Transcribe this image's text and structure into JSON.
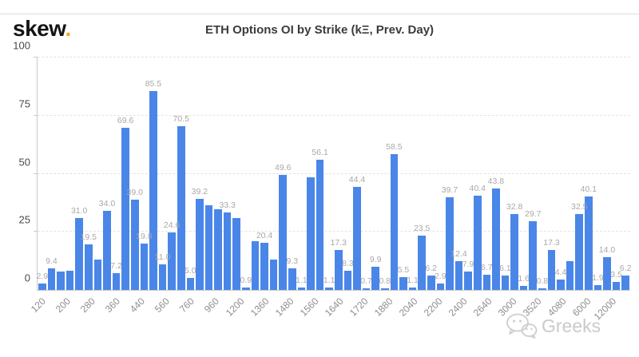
{
  "brand": {
    "logo_text": "skew",
    "logo_dot": "."
  },
  "title": "ETH Options OI by Strike (kΞ, Prev. Day)",
  "watermark": {
    "text": "Greeks",
    "icon": "wechat-icon"
  },
  "colors": {
    "bar": "#4a86e8",
    "logo_dot_accent": "#f5a623",
    "grid": "#e4e4e4",
    "axis": "#c8c8c8",
    "value_label": "#a8a8a8",
    "x_label": "#8e8e8e",
    "y_label": "#4a4a4a"
  },
  "chart_data": {
    "type": "bar",
    "title": "ETH Options OI by Strike (kΞ, Prev. Day)",
    "xlabel": "",
    "ylabel": "",
    "ylim": [
      0,
      100
    ],
    "y_ticks": [
      0,
      25,
      50,
      75,
      100
    ],
    "grid": "horizontal-dashed",
    "legend": "none",
    "bar_color": "#4a86e8",
    "x_tick_labels": [
      "120",
      "200",
      "280",
      "360",
      "440",
      "560",
      "760",
      "960",
      "1200",
      "1360",
      "1480",
      "1560",
      "1640",
      "1720",
      "1880",
      "2040",
      "2200",
      "2400",
      "2640",
      "3000",
      "3520",
      "4080",
      "6000",
      "12000"
    ],
    "bars": [
      {
        "value": 2.9,
        "label": "2.9"
      },
      {
        "value": 9.4,
        "label": "9.4"
      },
      {
        "value": 7.8,
        "label": ""
      },
      {
        "value": 8.4,
        "label": ""
      },
      {
        "value": 31.0,
        "label": "31.0"
      },
      {
        "value": 19.5,
        "label": "19.5"
      },
      {
        "value": 13.2,
        "label": ""
      },
      {
        "value": 34.0,
        "label": "34.0"
      },
      {
        "value": 7.2,
        "label": "7.2"
      },
      {
        "value": 69.6,
        "label": "69.6"
      },
      {
        "value": 39.0,
        "label": "39.0"
      },
      {
        "value": 19.8,
        "label": "19.8"
      },
      {
        "value": 85.5,
        "label": "85.5"
      },
      {
        "value": 11.0,
        "label": "11.0"
      },
      {
        "value": 24.6,
        "label": "24.6"
      },
      {
        "value": 70.5,
        "label": "70.5"
      },
      {
        "value": 5.0,
        "label": "5.0"
      },
      {
        "value": 39.2,
        "label": "39.2"
      },
      {
        "value": 36.5,
        "label": ""
      },
      {
        "value": 34.8,
        "label": ""
      },
      {
        "value": 33.3,
        "label": "33.3"
      },
      {
        "value": 31.0,
        "label": ""
      },
      {
        "value": 0.9,
        "label": "0.9"
      },
      {
        "value": 21.0,
        "label": ""
      },
      {
        "value": 20.4,
        "label": "20.4"
      },
      {
        "value": 13.0,
        "label": ""
      },
      {
        "value": 49.6,
        "label": "49.6"
      },
      {
        "value": 9.3,
        "label": "9.3"
      },
      {
        "value": 1.1,
        "label": "1.1"
      },
      {
        "value": 48.6,
        "label": ""
      },
      {
        "value": 56.1,
        "label": "56.1"
      },
      {
        "value": 1.1,
        "label": "1.1"
      },
      {
        "value": 17.3,
        "label": "17.3"
      },
      {
        "value": 8.3,
        "label": "8.3"
      },
      {
        "value": 44.4,
        "label": "44.4"
      },
      {
        "value": 0.7,
        "label": "0.7"
      },
      {
        "value": 9.9,
        "label": "9.9"
      },
      {
        "value": 0.8,
        "label": "0.8"
      },
      {
        "value": 58.5,
        "label": "58.5"
      },
      {
        "value": 5.5,
        "label": "5.5"
      },
      {
        "value": 1.1,
        "label": "1.1"
      },
      {
        "value": 23.5,
        "label": "23.5"
      },
      {
        "value": 6.2,
        "label": "6.2"
      },
      {
        "value": 2.9,
        "label": "2.9"
      },
      {
        "value": 39.7,
        "label": "39.7"
      },
      {
        "value": 12.4,
        "label": "12.4"
      },
      {
        "value": 7.9,
        "label": "7.9"
      },
      {
        "value": 40.4,
        "label": "40.4"
      },
      {
        "value": 6.7,
        "label": "6.7"
      },
      {
        "value": 43.8,
        "label": "43.8"
      },
      {
        "value": 6.1,
        "label": "6.1"
      },
      {
        "value": 32.8,
        "label": "32.8"
      },
      {
        "value": 1.6,
        "label": "1.6"
      },
      {
        "value": 29.7,
        "label": "29.7"
      },
      {
        "value": 0.8,
        "label": "0.8"
      },
      {
        "value": 17.3,
        "label": "17.3"
      },
      {
        "value": 4.4,
        "label": "4.4"
      },
      {
        "value": 12.5,
        "label": ""
      },
      {
        "value": 32.5,
        "label": "32.5"
      },
      {
        "value": 40.1,
        "label": "40.1"
      },
      {
        "value": 1.9,
        "label": "1.9"
      },
      {
        "value": 14.0,
        "label": "14.0"
      },
      {
        "value": 3.5,
        "label": "3.5"
      },
      {
        "value": 6.2,
        "label": "6.2"
      }
    ]
  }
}
